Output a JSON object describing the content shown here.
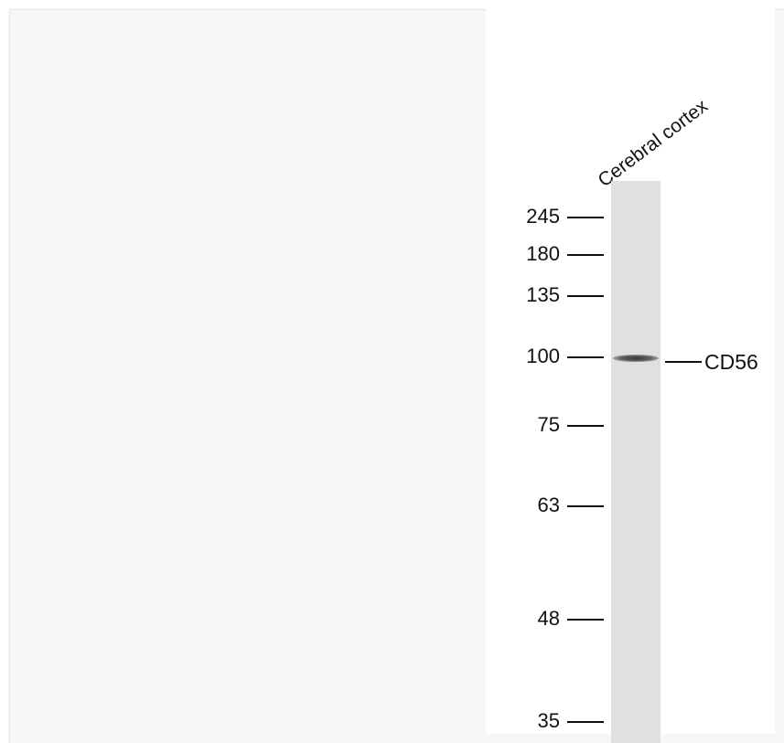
{
  "lane": {
    "label": "Cerebral cortex"
  },
  "markers": [
    {
      "label": "245"
    },
    {
      "label": "180"
    },
    {
      "label": "135"
    },
    {
      "label": "100"
    },
    {
      "label": "75"
    },
    {
      "label": "63"
    },
    {
      "label": "48"
    },
    {
      "label": "35"
    }
  ],
  "band": {
    "label": "CD56",
    "marker": "100"
  }
}
